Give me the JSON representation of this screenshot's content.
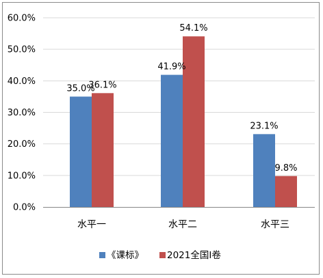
{
  "chart_data": {
    "type": "bar",
    "categories": [
      "水平一",
      "水平二",
      "水平三"
    ],
    "series": [
      {
        "name": "《课标》",
        "values": [
          35.0,
          41.9,
          23.1
        ],
        "labels": [
          "35.0%",
          "41.9%",
          "23.1%"
        ],
        "color": "#4f81bd"
      },
      {
        "name": "2021全国Ⅰ卷",
        "values": [
          36.1,
          54.1,
          9.8
        ],
        "labels": [
          "36.1%",
          "54.1%",
          "9.8%"
        ],
        "color": "#c0504d"
      }
    ],
    "yticks": [
      0,
      10,
      20,
      30,
      40,
      50,
      60
    ],
    "ytick_labels": [
      "0.0%",
      "10.0%",
      "20.0%",
      "30.0%",
      "40.0%",
      "50.0%",
      "60.0%"
    ],
    "ylim": [
      0,
      60
    ],
    "grid": true,
    "gridline_color": "#d9d9d9",
    "axis_color": "#868686",
    "legend_position": "bottom",
    "title": "",
    "xlabel": "",
    "ylabel": ""
  }
}
